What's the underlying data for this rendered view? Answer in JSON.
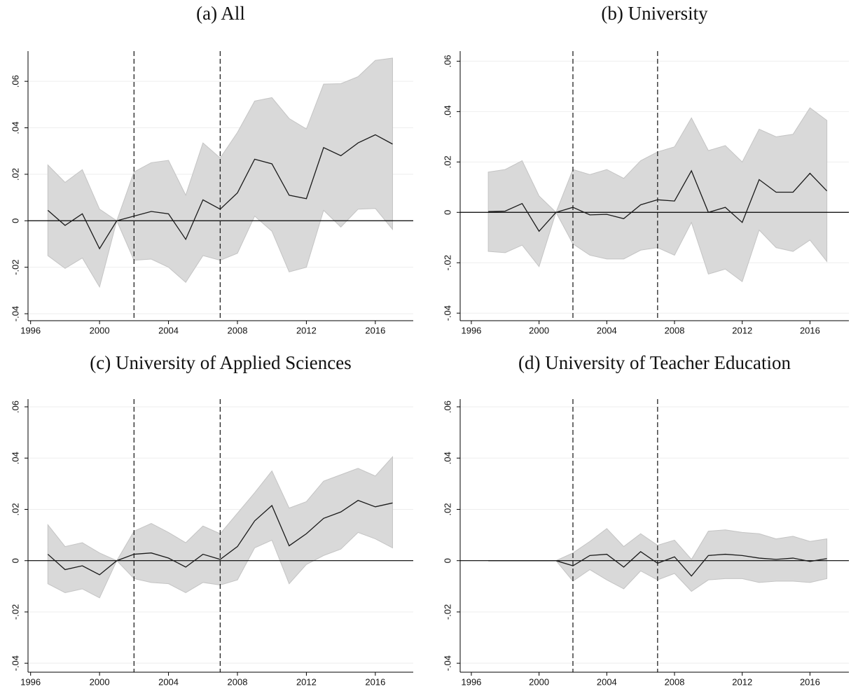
{
  "chart_data": [
    {
      "type": "line",
      "title": "(a) All",
      "x": [
        1997,
        1998,
        1999,
        2000,
        2001,
        2002,
        2003,
        2004,
        2005,
        2006,
        2007,
        2008,
        2009,
        2010,
        2011,
        2012,
        2013,
        2014,
        2015,
        2016,
        2017
      ],
      "values": [
        0.0045,
        -0.002,
        0.003,
        -0.012,
        0,
        0.002,
        0.004,
        0.003,
        -0.008,
        0.009,
        0.005,
        0.012,
        0.0265,
        0.0245,
        0.011,
        0.0095,
        0.0315,
        0.028,
        0.0335,
        0.037,
        0.033
      ],
      "upper": [
        0.024,
        0.0165,
        0.022,
        0.005,
        0,
        0.021,
        0.025,
        0.026,
        0.011,
        0.0335,
        0.027,
        0.038,
        0.0515,
        0.053,
        0.044,
        0.0395,
        0.0588,
        0.059,
        0.062,
        0.069,
        0.07
      ],
      "lower": [
        -0.015,
        -0.0205,
        -0.016,
        -0.0285,
        0,
        -0.017,
        -0.0165,
        -0.02,
        -0.0265,
        -0.015,
        -0.017,
        -0.014,
        0.002,
        -0.0045,
        -0.022,
        -0.02,
        0.0045,
        -0.0027,
        0.005,
        0.0053,
        -0.0037
      ],
      "color": "#1a1a1a",
      "band_color": "#d9d9d9",
      "vlines": [
        2002,
        2007
      ],
      "hline": 0,
      "xlim": [
        1995.85,
        2018.2
      ],
      "xticks": [
        1996,
        2000,
        2004,
        2008,
        2012,
        2016
      ],
      "ylim": [
        -0.043,
        0.073
      ],
      "yticks": [
        {
          "value": -0.04,
          "label": "-.04"
        },
        {
          "value": -0.02,
          "label": "-.02"
        },
        0,
        {
          "value": 0.02,
          "label": ".02"
        },
        {
          "value": 0.04,
          "label": ".04"
        },
        {
          "value": 0.06,
          "label": ".06"
        }
      ],
      "grid": true
    },
    {
      "type": "line",
      "title": "(b) University",
      "x": [
        1997,
        1998,
        1999,
        2000,
        2001,
        2002,
        2003,
        2004,
        2005,
        2006,
        2007,
        2008,
        2009,
        2010,
        2011,
        2012,
        2013,
        2014,
        2015,
        2016,
        2017
      ],
      "values": [
        0.0003,
        0.0005,
        0.0035,
        -0.0075,
        0,
        0.002,
        -0.001,
        -0.0008,
        -0.0025,
        0.003,
        0.005,
        0.0045,
        0.0165,
        0,
        0.002,
        -0.004,
        0.013,
        0.008,
        0.008,
        0.0155,
        0.0085
      ],
      "upper": [
        0.016,
        0.017,
        0.0205,
        0.0065,
        0,
        0.017,
        0.015,
        0.017,
        0.0135,
        0.0205,
        0.024,
        0.026,
        0.0375,
        0.0245,
        0.0265,
        0.02,
        0.033,
        0.03,
        0.031,
        0.0415,
        0.0365
      ],
      "lower": [
        -0.0155,
        -0.016,
        -0.013,
        -0.0215,
        0,
        -0.0125,
        -0.017,
        -0.0185,
        -0.0185,
        -0.015,
        -0.014,
        -0.017,
        -0.004,
        -0.0245,
        -0.0225,
        -0.0275,
        -0.007,
        -0.014,
        -0.0155,
        -0.011,
        -0.0195
      ],
      "color": "#1a1a1a",
      "band_color": "#d9d9d9",
      "vlines": [
        2002,
        2007
      ],
      "hline": 0,
      "xlim": [
        1995.34,
        2018.3
      ],
      "xticks": [
        1996,
        2000,
        2004,
        2008,
        2012,
        2016
      ],
      "ylim": [
        -0.043,
        0.064
      ],
      "yticks": [
        {
          "value": -0.04,
          "label": "-.04"
        },
        {
          "value": -0.02,
          "label": "-.02"
        },
        0,
        {
          "value": 0.02,
          "label": ".02"
        },
        {
          "value": 0.04,
          "label": ".04"
        },
        {
          "value": 0.06,
          "label": ".06"
        }
      ],
      "grid": true
    },
    {
      "type": "line",
      "title": "(c) University of Applied Sciences",
      "x": [
        1997,
        1998,
        1999,
        2000,
        2001,
        2002,
        2003,
        2004,
        2005,
        2006,
        2007,
        2008,
        2009,
        2010,
        2011,
        2012,
        2013,
        2014,
        2015,
        2016,
        2017
      ],
      "values": [
        0.0025,
        -0.0035,
        -0.002,
        -0.0055,
        0,
        0.0025,
        0.003,
        0.001,
        -0.0025,
        0.0025,
        0.0005,
        0.0055,
        0.0155,
        0.0215,
        0.0058,
        0.0105,
        0.0165,
        0.019,
        0.0235,
        0.021,
        0.0225
      ],
      "upper": [
        0.014,
        0.0055,
        0.007,
        0.003,
        0,
        0.0115,
        0.0145,
        0.011,
        0.007,
        0.0135,
        0.0105,
        0.0185,
        0.0265,
        0.035,
        0.0205,
        0.023,
        0.031,
        0.0335,
        0.036,
        0.033,
        0.0405
      ],
      "lower": [
        -0.009,
        -0.0125,
        -0.011,
        -0.0145,
        0,
        -0.007,
        -0.0085,
        -0.009,
        -0.0125,
        -0.0085,
        -0.0095,
        -0.0075,
        0.005,
        0.008,
        -0.009,
        -0.0015,
        0.002,
        0.0045,
        0.011,
        0.0085,
        0.005
      ],
      "color": "#1a1a1a",
      "band_color": "#d9d9d9",
      "vlines": [
        2002,
        2007
      ],
      "hline": 0,
      "xlim": [
        1995.85,
        2018.2
      ],
      "xticks": [
        1996,
        2000,
        2004,
        2008,
        2012,
        2016
      ],
      "ylim": [
        -0.0435,
        0.063
      ],
      "yticks": [
        {
          "value": -0.04,
          "label": "-.04"
        },
        {
          "value": -0.02,
          "label": "-.02"
        },
        0,
        {
          "value": 0.02,
          "label": ".02"
        },
        {
          "value": 0.04,
          "label": ".04"
        },
        {
          "value": 0.06,
          "label": ".06"
        }
      ],
      "grid": true
    },
    {
      "type": "line",
      "title": "(d) University of Teacher Education",
      "x": [
        1997,
        1998,
        1999,
        2000,
        2001,
        2002,
        2003,
        2004,
        2005,
        2006,
        2007,
        2008,
        2009,
        2010,
        2011,
        2012,
        2013,
        2014,
        2015,
        2016,
        2017
      ],
      "values": [
        0,
        0,
        0,
        0,
        0,
        -0.002,
        0.002,
        0.0025,
        -0.0025,
        0.0035,
        -0.001,
        0.0015,
        -0.006,
        0.002,
        0.0025,
        0.002,
        0.001,
        0.0005,
        0.001,
        -0.0003,
        0.0008
      ],
      "upper": [
        0,
        0,
        0,
        0,
        0,
        0.003,
        0.0075,
        0.0125,
        0.0055,
        0.0105,
        0.006,
        0.008,
        0.0005,
        0.0115,
        0.012,
        0.011,
        0.0105,
        0.0085,
        0.0095,
        0.0075,
        0.0085
      ],
      "lower": [
        0,
        0,
        0,
        0,
        0,
        -0.008,
        -0.0035,
        -0.0075,
        -0.011,
        -0.004,
        -0.0075,
        -0.005,
        -0.012,
        -0.0075,
        -0.007,
        -0.007,
        -0.0085,
        -0.008,
        -0.008,
        -0.0085,
        -0.007
      ],
      "color": "#1a1a1a",
      "band_color": "#d9d9d9",
      "vlines": [
        2002,
        2007
      ],
      "hline": 0,
      "xlim": [
        1995.34,
        2018.3
      ],
      "xticks": [
        1996,
        2000,
        2004,
        2008,
        2012,
        2016
      ],
      "ylim": [
        -0.0435,
        0.063
      ],
      "yticks": [
        {
          "value": -0.04,
          "label": "-.04"
        },
        {
          "value": -0.02,
          "label": "-.02"
        },
        0,
        {
          "value": 0.02,
          "label": ".02"
        },
        {
          "value": 0.04,
          "label": ".04"
        },
        {
          "value": 0.06,
          "label": ".06"
        }
      ],
      "grid": true
    }
  ]
}
